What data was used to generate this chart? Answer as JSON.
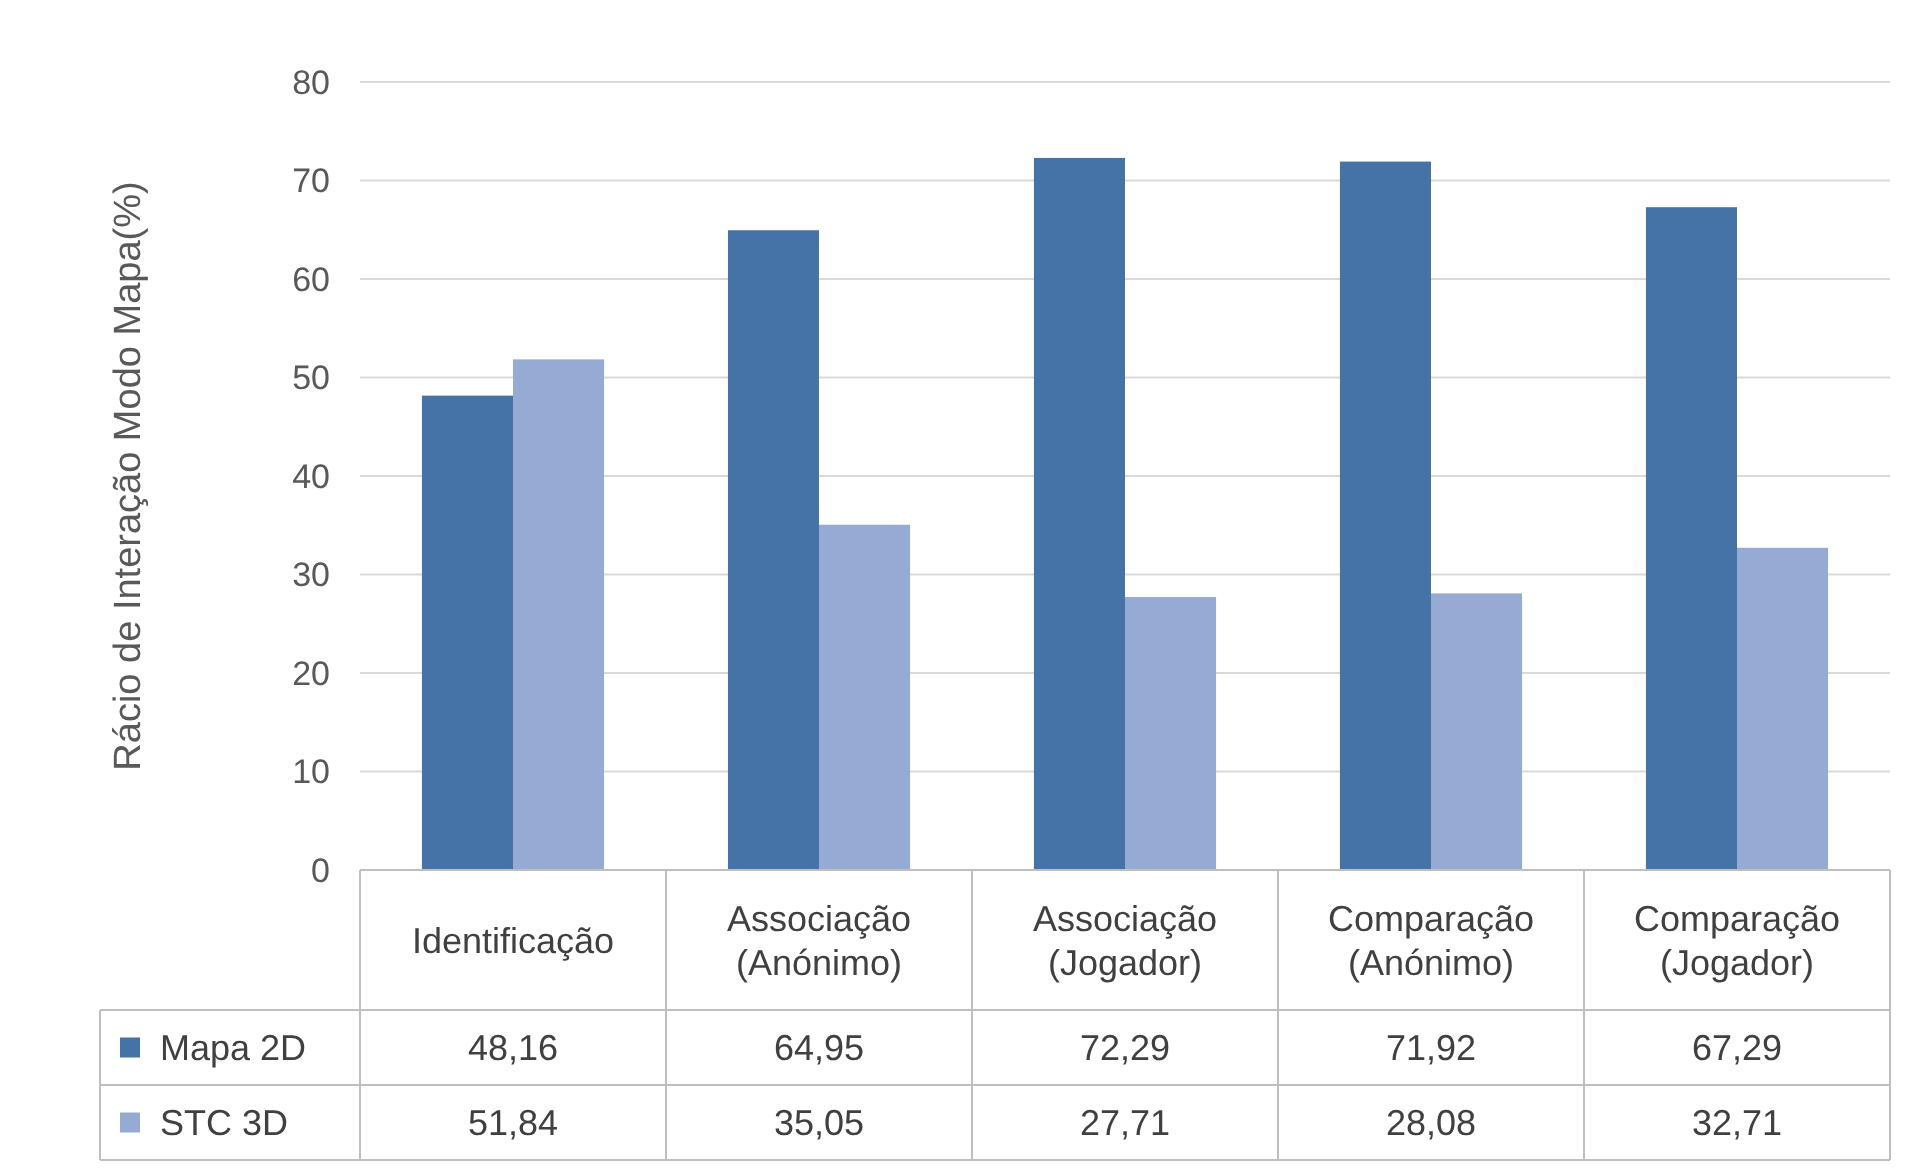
{
  "chart_data": {
    "type": "bar",
    "ylabel": "Rácio de Interação Modo Mapa(%)",
    "categories": [
      "Identificação",
      "Associação (Anónimo)",
      "Associação (Jogador)",
      "Comparação (Anónimo)",
      "Comparação (Jogador)"
    ],
    "series": [
      {
        "name": "Mapa 2D",
        "color": "#4572a7",
        "values": [
          48.16,
          64.95,
          72.29,
          71.92,
          67.29
        ],
        "value_labels": [
          "48,16",
          "64,95",
          "72,29",
          "71,92",
          "67,29"
        ]
      },
      {
        "name": "STC 3D",
        "color": "#95abd4",
        "values": [
          51.84,
          35.05,
          27.71,
          28.08,
          32.71
        ],
        "value_labels": [
          "51,84",
          "35,05",
          "27,71",
          "28,08",
          "32,71"
        ]
      }
    ],
    "ylim": [
      0,
      80
    ],
    "yticks": [
      0,
      10,
      20,
      30,
      40,
      50,
      60,
      70,
      80
    ],
    "grid": "y",
    "legend": "bottom"
  }
}
